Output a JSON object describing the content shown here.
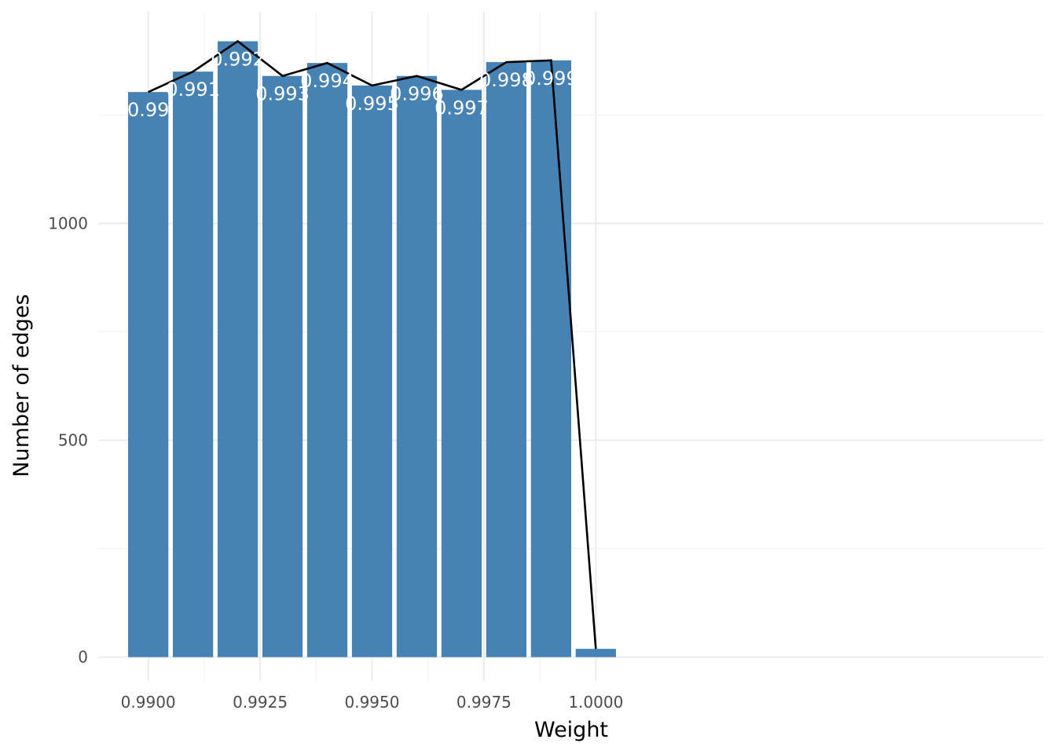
{
  "chart_data": {
    "type": "bar",
    "title": "",
    "xlabel": "Weight",
    "ylabel": "Number of edges",
    "x": [
      0.99,
      0.991,
      0.992,
      0.993,
      0.994,
      0.995,
      0.996,
      0.997,
      0.998,
      0.999,
      1.0
    ],
    "values": [
      1303,
      1350,
      1420,
      1340,
      1370,
      1318,
      1340,
      1308,
      1372,
      1376,
      19
    ],
    "data_labels": [
      "0.99",
      "0.991",
      "0.992",
      "0.993",
      "0.994",
      "0.995",
      "0.996",
      "0.997",
      "0.998",
      "0.999",
      ""
    ],
    "overlay_line": {
      "type": "line",
      "x": [
        0.99,
        0.991,
        0.992,
        0.993,
        0.994,
        0.995,
        0.996,
        0.997,
        0.998,
        0.999,
        1.0
      ],
      "values": [
        1303,
        1350,
        1420,
        1340,
        1370,
        1318,
        1340,
        1308,
        1372,
        1376,
        19
      ]
    },
    "xlim": [
      0.9889,
      1.01
    ],
    "ylim": [
      -55,
      1488
    ],
    "x_ticks": [
      0.99,
      0.9925,
      0.995,
      0.9975,
      1.0
    ],
    "x_tick_labels": [
      "0.9900",
      "0.9925",
      "0.9950",
      "0.9975",
      "1.0000"
    ],
    "y_ticks": [
      0,
      500,
      1000
    ],
    "y_tick_labels": [
      "0",
      "500",
      "1000"
    ],
    "grid": true,
    "legend": "none",
    "colors": {
      "bar": "#4682b4",
      "line": "#000000",
      "label": "#ffffff"
    }
  }
}
